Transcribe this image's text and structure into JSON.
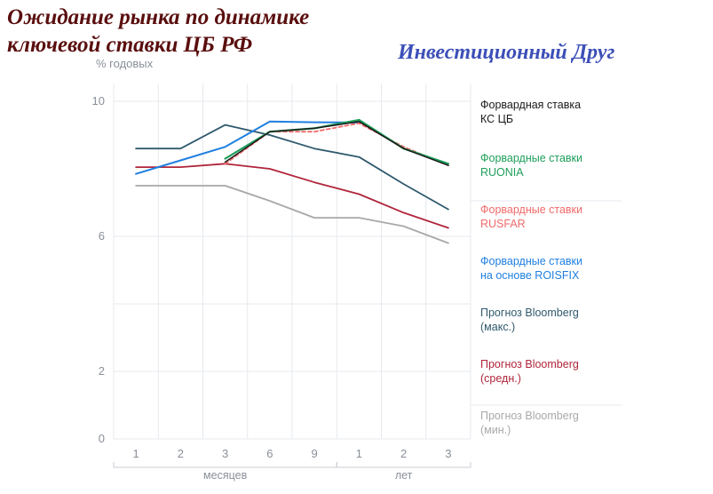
{
  "page": {
    "title_line1": "Ожидание рынка по динамике",
    "title_line2": "ключевой ставки ЦБ РФ",
    "brand": "Инвестиционный Друг"
  },
  "chart_data": {
    "type": "line",
    "ylabel": "% годовых",
    "ylim": [
      0,
      10
    ],
    "yticks": [
      0,
      2,
      6,
      10
    ],
    "categories": [
      "1",
      "2",
      "3",
      "6",
      "9",
      "1",
      "2",
      "3"
    ],
    "groups": [
      {
        "label": "месяцев",
        "from": 0,
        "to": 4
      },
      {
        "label": "лет",
        "from": 5,
        "to": 7
      }
    ],
    "legend_position": "right",
    "grid": true,
    "series": [
      {
        "name": "Форвардная ставка\nКС ЦБ",
        "color": "#1a1a1a",
        "values": [
          null,
          null,
          8.2,
          9.1,
          9.2,
          9.4,
          8.6,
          8.1
        ],
        "width": 1.5
      },
      {
        "name": "Форвардные ставки\nRUONIA",
        "color": "#1e9e5a",
        "values": [
          null,
          null,
          8.3,
          9.1,
          9.2,
          9.45,
          8.6,
          8.15
        ],
        "width": 2.2
      },
      {
        "name": "Форвардные ставки\nRUSFAR",
        "color": "#f06a6a",
        "values": [
          null,
          null,
          8.15,
          9.1,
          9.1,
          9.35,
          8.65,
          8.1
        ],
        "width": 1.8,
        "dash": "4,3"
      },
      {
        "name": "Форвардные ставки\nна основе ROISFIX",
        "color": "#1f7fe0",
        "values": [
          7.85,
          8.25,
          8.65,
          9.4,
          9.38,
          9.37,
          null,
          null
        ],
        "width": 2.0
      },
      {
        "name": "Прогноз Bloomberg\n(макс.)",
        "color": "#2f5a6e",
        "values": [
          8.6,
          8.6,
          9.3,
          9.0,
          8.6,
          8.35,
          7.55,
          6.8
        ],
        "width": 1.8
      },
      {
        "name": "Прогноз Bloomberg\n(средн.)",
        "color": "#b0253a",
        "values": [
          8.05,
          8.05,
          8.15,
          8.0,
          7.6,
          7.25,
          6.7,
          6.25
        ],
        "width": 1.8
      },
      {
        "name": "Прогноз Bloomberg\n(мин.)",
        "color": "#a8a8a8",
        "values": [
          7.5,
          7.5,
          7.5,
          7.05,
          6.55,
          6.55,
          6.3,
          5.8
        ],
        "width": 1.8
      }
    ]
  }
}
